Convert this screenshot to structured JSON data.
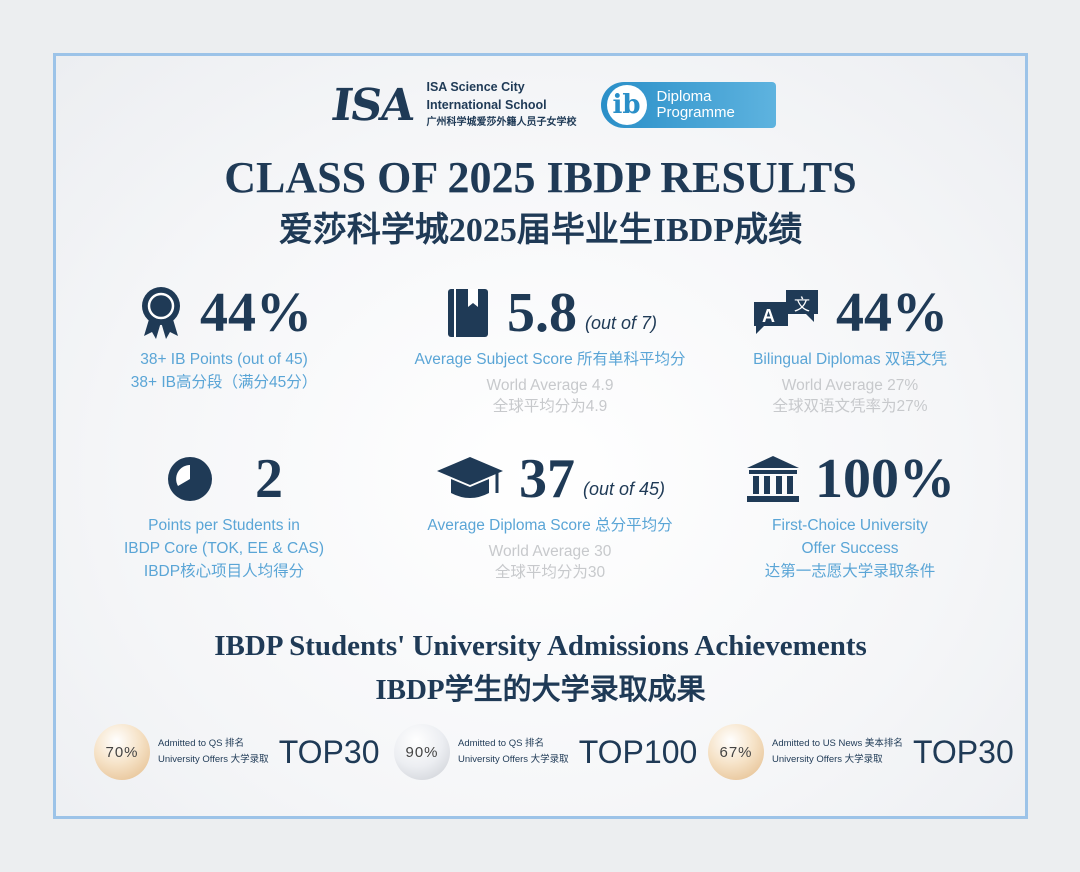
{
  "header": {
    "isa_logo": "ISA",
    "school_en_1": "ISA Science City",
    "school_en_2": "International School",
    "school_cn": "广州科学城爱莎外籍人员子女学校",
    "ib_logo": "ib",
    "ib_text_1": "Diploma",
    "ib_text_2": "Programme"
  },
  "title": "CLASS OF 2025 IBDP RESULTS",
  "subtitle": "爱莎科学城2025届毕业生IBDP成绩",
  "stats": [
    {
      "icon": "award-ribbon-icon",
      "value": "44%",
      "label_1": "38+ IB Points (out of 45)",
      "label_2": "38+ IB高分段（满分45分）"
    },
    {
      "icon": "book-icon",
      "value": "5.8",
      "out_of": "(out of 7)",
      "label_1": "Average Subject Score 所有单科平均分",
      "world_1": "World Average 4.9",
      "world_2": "全球平均分为4.9"
    },
    {
      "icon": "translate-icon",
      "value": "44%",
      "label_1": "Bilingual Diplomas 双语文凭",
      "world_1": "World Average 27%",
      "world_2": "全球双语文凭率为27%"
    },
    {
      "icon": "pie-chart-icon",
      "value": "2",
      "label_1": "Points per Students in",
      "label_2": "IBDP Core (TOK, EE & CAS)",
      "label_3": "IBDP核心项目人均得分"
    },
    {
      "icon": "graduation-cap-icon",
      "value": "37",
      "out_of": "(out of 45)",
      "label_1": "Average Diploma Score 总分平均分",
      "world_1": "World Average 30",
      "world_2": "全球平均分为30"
    },
    {
      "icon": "university-building-icon",
      "value": "100%",
      "label_1": "First-Choice University",
      "label_2": "Offer Success",
      "label_3": "达第一志愿大学录取条件"
    }
  ],
  "admissions": {
    "title_en": "IBDP Students' University Admissions Achievements",
    "title_cn": "IBDP学生的大学录取成果",
    "items": [
      {
        "percent": "70%",
        "line_1": "Admitted to QS 排名",
        "line_2": "University Offers 大学录取",
        "rank": "TOP30"
      },
      {
        "percent": "90%",
        "line_1": "Admitted to QS 排名",
        "line_2": "University Offers 大学录取",
        "rank": "TOP100"
      },
      {
        "percent": "67%",
        "line_1": "Admitted to US News 美本排名",
        "line_2": "University Offers 大学录取",
        "rank": "TOP30"
      }
    ]
  },
  "colors": {
    "navy": "#1f3a56",
    "accent_blue": "#5aa5d6",
    "muted": "#c7c9cc",
    "frame": "#9cc3e8"
  }
}
